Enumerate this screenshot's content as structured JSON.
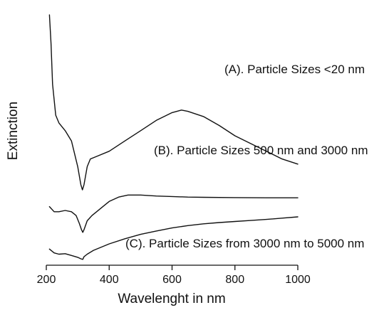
{
  "chart_data": {
    "type": "line",
    "title": "",
    "xlabel": "Wavelenght in nm",
    "ylabel": "Extinction",
    "xlim": [
      200,
      1000
    ],
    "x_ticks": [
      "200",
      "400",
      "600",
      "800",
      "1000"
    ],
    "y_ticks_shown": false,
    "grid": false,
    "series": [
      {
        "name": "(A). Particle Sizes <20 nm",
        "x": [
          210,
          215,
          220,
          230,
          240,
          260,
          280,
          300,
          310,
          315,
          320,
          330,
          340,
          360,
          400,
          450,
          500,
          550,
          600,
          630,
          650,
          700,
          750,
          800,
          850,
          900,
          950,
          1000
        ],
        "y": [
          0.97,
          0.86,
          0.7,
          0.58,
          0.55,
          0.52,
          0.48,
          0.38,
          0.31,
          0.29,
          0.31,
          0.38,
          0.41,
          0.42,
          0.44,
          0.48,
          0.52,
          0.56,
          0.59,
          0.6,
          0.595,
          0.575,
          0.54,
          0.5,
          0.47,
          0.44,
          0.41,
          0.39
        ]
      },
      {
        "name": "(B). Particle Sizes 500 nm and 3000 nm",
        "x": [
          210,
          225,
          240,
          260,
          280,
          295,
          305,
          312,
          316,
          320,
          330,
          345,
          360,
          380,
          400,
          430,
          460,
          500,
          550,
          600,
          650,
          700,
          800,
          900,
          1000
        ],
        "y": [
          0.225,
          0.205,
          0.205,
          0.21,
          0.205,
          0.19,
          0.16,
          0.135,
          0.125,
          0.135,
          0.17,
          0.19,
          0.205,
          0.225,
          0.245,
          0.262,
          0.27,
          0.27,
          0.266,
          0.264,
          0.262,
          0.261,
          0.26,
          0.259,
          0.259
        ]
      },
      {
        "name": "(C). Particle Sizes from 3000 nm to 5000 nm",
        "x": [
          210,
          225,
          240,
          260,
          280,
          300,
          310,
          316,
          320,
          330,
          350,
          400,
          450,
          500,
          550,
          600,
          650,
          700,
          750,
          800,
          850,
          900,
          950,
          1000
        ],
        "y": [
          0.06,
          0.045,
          0.04,
          0.042,
          0.035,
          0.028,
          0.022,
          0.02,
          0.03,
          0.04,
          0.055,
          0.08,
          0.1,
          0.117,
          0.13,
          0.142,
          0.151,
          0.158,
          0.163,
          0.167,
          0.171,
          0.175,
          0.18,
          0.185
        ]
      }
    ],
    "annotations": [
      "(A). Particle Sizes <20 nm",
      "(B). Particle Sizes 500 nm and 3000 nm",
      "(C). Particle Sizes from 3000 nm to 5000 nm"
    ],
    "colors": {
      "line": "#111111",
      "background": "#ffffff"
    }
  }
}
